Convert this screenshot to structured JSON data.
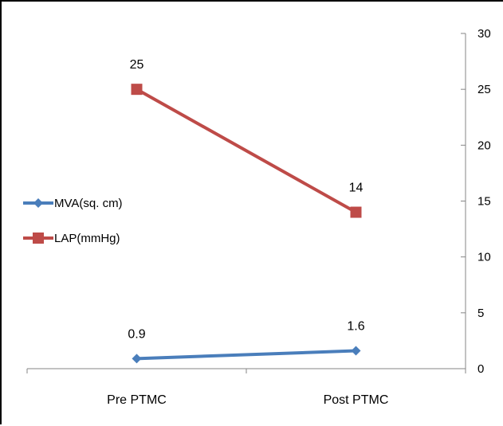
{
  "chart_data": {
    "type": "line",
    "categories": [
      "Pre PTMC",
      "Post PTMC"
    ],
    "series": [
      {
        "name": "MVA(sq. cm)",
        "values": [
          0.9,
          1.6
        ],
        "color": "#4a7ebb",
        "marker": "diamond"
      },
      {
        "name": "LAP(mmHg)",
        "values": [
          25,
          14
        ],
        "color": "#be4b48",
        "marker": "square"
      }
    ],
    "y_axis": {
      "position": "right",
      "ylim": [
        0,
        30
      ],
      "ticks": [
        0,
        5,
        10,
        15,
        20,
        25,
        30
      ]
    },
    "grid": false,
    "legend_placement": "left"
  }
}
